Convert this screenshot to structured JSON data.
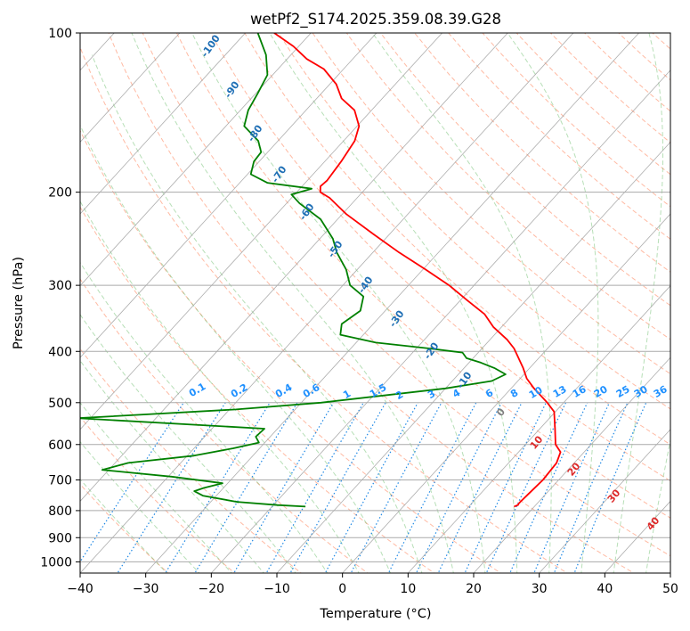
{
  "colors": {
    "temperature": "#ff0000",
    "dewpoint": "#008000",
    "dry_adiabat": "#ff9c7c",
    "moist_adiabat": "#5fb85f",
    "mixing_ratio": "#1e88e5",
    "isotherm": "#999999",
    "isobar_grid": "#aaaaaa",
    "dry_label": "#1f6fb5",
    "mixing_label": "#1e90ff",
    "moist_label": "#dd2a2a",
    "moist_zero_label": "#808080"
  },
  "chart_data": {
    "type": "skew-t",
    "title": "wetPf2_S174.2025.359.08.39.G28",
    "xlabel": "Temperature (°C)",
    "ylabel": "Pressure (hPa)",
    "xlim": [
      -40,
      50
    ],
    "ylim": [
      1050,
      100
    ],
    "x_ticks": [
      -40,
      -30,
      -20,
      -10,
      0,
      10,
      20,
      30,
      40,
      50
    ],
    "y_ticks": [
      1000,
      900,
      800,
      700,
      600,
      500,
      400,
      300,
      200,
      100
    ],
    "series": [
      {
        "name": "Temperature",
        "points": [
          [
            786,
            16.9
          ],
          [
            780,
            17.3
          ],
          [
            777,
            17.2
          ],
          [
            770,
            17.2
          ],
          [
            750,
            17.3
          ],
          [
            700,
            17.6
          ],
          [
            650,
            17.3
          ],
          [
            620,
            16.4
          ],
          [
            600,
            14.6
          ],
          [
            560,
            12.3
          ],
          [
            520,
            9.8
          ],
          [
            500,
            7.5
          ],
          [
            470,
            3.5
          ],
          [
            450,
            1.0
          ],
          [
            430,
            -1.0
          ],
          [
            410,
            -3.3
          ],
          [
            395,
            -5.1
          ],
          [
            380,
            -7.4
          ],
          [
            360,
            -11.2
          ],
          [
            340,
            -14.4
          ],
          [
            320,
            -19.0
          ],
          [
            300,
            -23.8
          ],
          [
            280,
            -29.6
          ],
          [
            260,
            -36.0
          ],
          [
            240,
            -42.5
          ],
          [
            220,
            -49.4
          ],
          [
            205,
            -54.2
          ],
          [
            200,
            -56.4
          ],
          [
            195,
            -57.2
          ],
          [
            190,
            -57.0
          ],
          [
            175,
            -57.5
          ],
          [
            160,
            -58.3
          ],
          [
            150,
            -59.7
          ],
          [
            140,
            -62.6
          ],
          [
            133,
            -66.2
          ],
          [
            125,
            -69.0
          ],
          [
            117,
            -73.0
          ],
          [
            112,
            -77.0
          ],
          [
            106,
            -80.8
          ],
          [
            100,
            -85.6
          ]
        ]
      },
      {
        "name": "Dewpoint",
        "points": [
          [
            786,
            -14.9
          ],
          [
            781,
            -19.4
          ],
          [
            770,
            -26.0
          ],
          [
            750,
            -32.0
          ],
          [
            735,
            -34.0
          ],
          [
            725,
            -33.0
          ],
          [
            710,
            -30.8
          ],
          [
            690,
            -39.5
          ],
          [
            670,
            -51.0
          ],
          [
            650,
            -48.0
          ],
          [
            630,
            -39.0
          ],
          [
            610,
            -34.0
          ],
          [
            595,
            -30.9
          ],
          [
            580,
            -32.2
          ],
          [
            560,
            -32.0
          ],
          [
            535,
            -61.9
          ],
          [
            515,
            -39.0
          ],
          [
            500,
            -27.0
          ],
          [
            470,
            -10.0
          ],
          [
            455,
            -4.0
          ],
          [
            442,
            -2.8
          ],
          [
            430,
            -5.4
          ],
          [
            420,
            -8.2
          ],
          [
            412,
            -11.0
          ],
          [
            402,
            -12.4
          ],
          [
            395,
            -18.0
          ],
          [
            385,
            -27.0
          ],
          [
            372,
            -33.5
          ],
          [
            355,
            -34.8
          ],
          [
            335,
            -33.8
          ],
          [
            315,
            -35.3
          ],
          [
            300,
            -38.9
          ],
          [
            280,
            -41.7
          ],
          [
            260,
            -45.5
          ],
          [
            245,
            -48.0
          ],
          [
            225,
            -52.6
          ],
          [
            210,
            -58.0
          ],
          [
            202,
            -60.5
          ],
          [
            197,
            -58.2
          ],
          [
            192,
            -65.8
          ],
          [
            185,
            -69.5
          ],
          [
            175,
            -70.8
          ],
          [
            168,
            -71.0
          ],
          [
            160,
            -73.0
          ],
          [
            150,
            -77.2
          ],
          [
            140,
            -78.8
          ],
          [
            130,
            -79.7
          ],
          [
            120,
            -80.8
          ],
          [
            110,
            -83.8
          ],
          [
            100,
            -88.1
          ]
        ]
      }
    ],
    "dry_adiabat_labels": [
      "-100",
      "-90",
      "-80",
      "-70",
      "-60",
      "-50",
      "-40",
      "-30",
      "-20",
      "-10"
    ],
    "mixing_ratio_labels": [
      "0.1",
      "0.2",
      "0.4",
      "0.6",
      "1",
      "1.5",
      "2",
      "3",
      "4",
      "6",
      "8",
      "10",
      "13",
      "16",
      "20",
      "25",
      "30",
      "36"
    ],
    "moist_adiabat_labels": [
      "0",
      "10",
      "20",
      "30",
      "40"
    ],
    "grid": true,
    "skew": true
  }
}
